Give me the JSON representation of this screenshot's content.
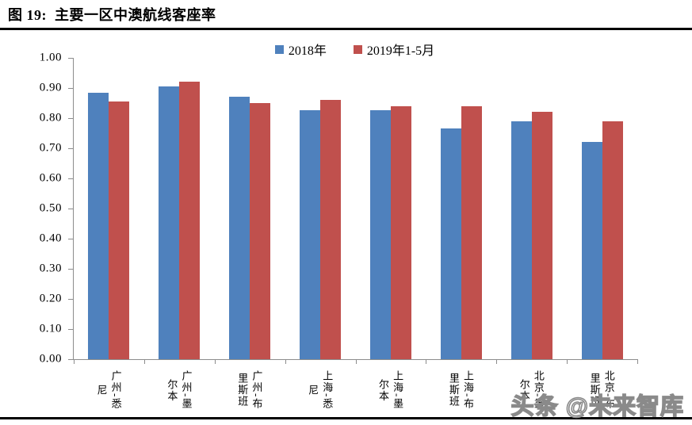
{
  "figure": {
    "title": "图 19:  主要一区中澳航线客座率",
    "watermark": "头条 @未来智库"
  },
  "colors": {
    "series_2018": "#4F81BD",
    "series_2019": "#C0504D",
    "axis": "#8C8C8C",
    "rule": "#000000",
    "watermark_outline": "#8A8A8A"
  },
  "chart_data": {
    "type": "bar",
    "title": "主要一区中澳航线客座率",
    "categories": [
      "广州-悉尼",
      "广州-墨尔本",
      "广州-布里斯班",
      "上海-悉尼",
      "上海-墨尔本",
      "上海-布里斯班",
      "北京-墨尔本",
      "北京-布里斯班"
    ],
    "series": [
      {
        "name": "2018年",
        "color": "#4F81BD",
        "values": [
          0.885,
          0.905,
          0.87,
          0.825,
          0.825,
          0.765,
          0.79,
          0.72
        ]
      },
      {
        "name": "2019年1-5月",
        "color": "#C0504D",
        "values": [
          0.855,
          0.92,
          0.85,
          0.86,
          0.84,
          0.84,
          0.82,
          0.79
        ]
      }
    ],
    "ylim": [
      0,
      1.0
    ],
    "ytick_step": 0.1,
    "yticks": [
      "1.00",
      "0.90",
      "0.80",
      "0.70",
      "0.60",
      "0.50",
      "0.40",
      "0.30",
      "0.20",
      "0.10",
      "0.00"
    ],
    "grid": false,
    "legend_position": "top-center",
    "xlabel": "",
    "ylabel": ""
  }
}
